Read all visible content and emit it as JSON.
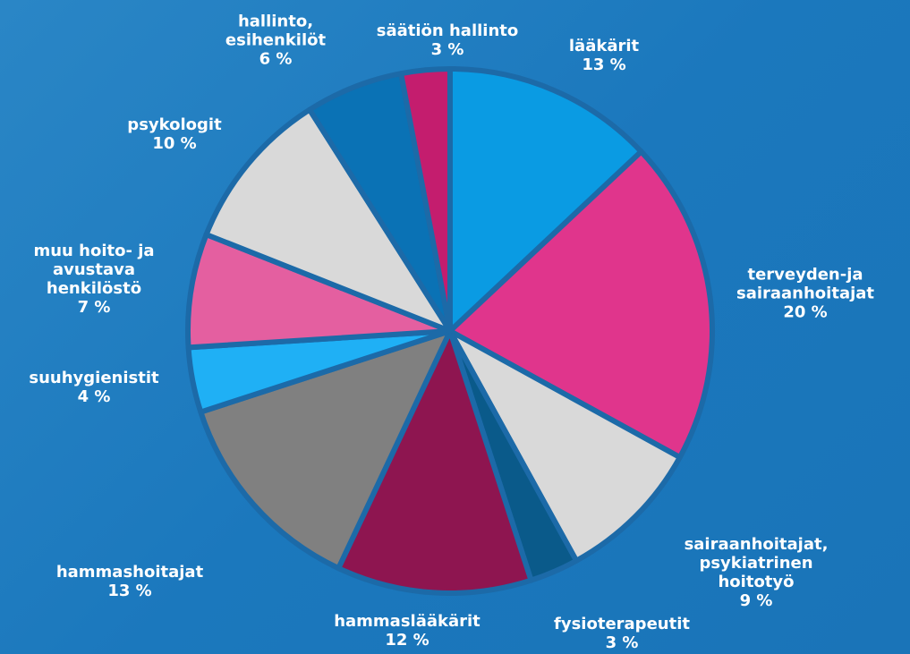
{
  "chart_data": {
    "type": "pie",
    "categories": [
      "lääkärit",
      "terveyden-ja\nsairaanhoitajat",
      "sairaanhoitajat,\npsykiatrinen\nhoitotyö",
      "fysioterapeutit",
      "hammaslääkärit",
      "hammashoitajat",
      "suuhygienistit",
      "muu hoito- ja\navustava\nhenkilöstö",
      "psykologit",
      "hallinto,\nesihenkilöt",
      "säätiön hallinto"
    ],
    "values": [
      13,
      20,
      9,
      3,
      12,
      13,
      4,
      7,
      10,
      6,
      3
    ],
    "value_labels": [
      "13 %",
      "20 %",
      "9 %",
      "3 %",
      "12 %",
      "13 %",
      "4 %",
      "7 %",
      "10 %",
      "6 %",
      "3 %"
    ],
    "colors": [
      "#0a9be3",
      "#e0358c",
      "#d9d9d9",
      "#0a5a8a",
      "#8e1550",
      "#808080",
      "#1fb0f5",
      "#e45fa0",
      "#d9d9d9",
      "#0a72b5",
      "#c41d6e"
    ]
  }
}
